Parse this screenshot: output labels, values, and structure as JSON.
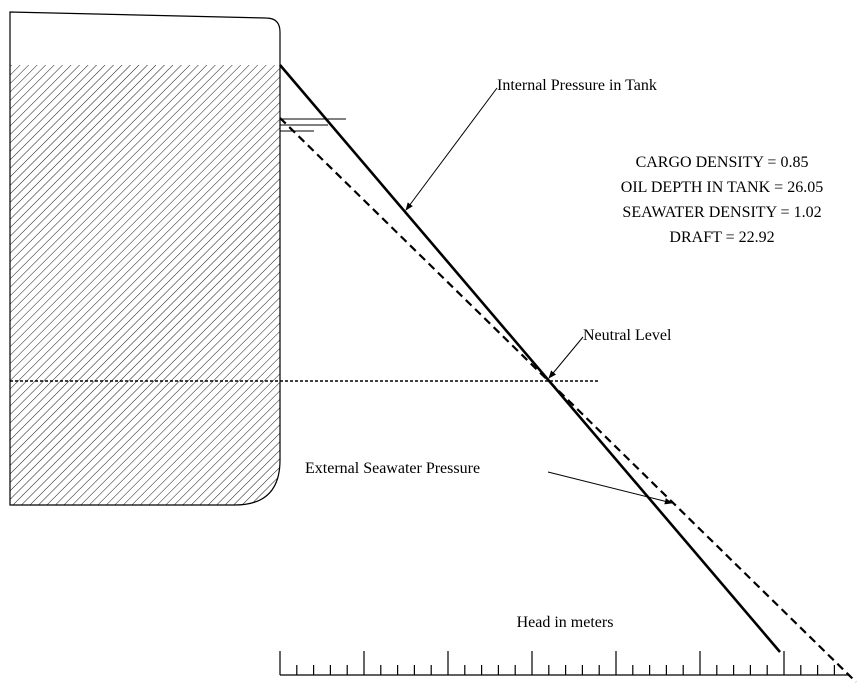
{
  "labels": {
    "internal": "Internal Pressure in Tank",
    "neutral": "Neutral Level",
    "external": "External Seawater Pressure",
    "scale": "Head in meters"
  },
  "parameters": [
    "CARGO DENSITY = 0.85",
    "OIL DEPTH IN TANK = 26.05",
    "SEAWATER DENSITY = 1.02",
    "DRAFT = 22.92"
  ]
}
